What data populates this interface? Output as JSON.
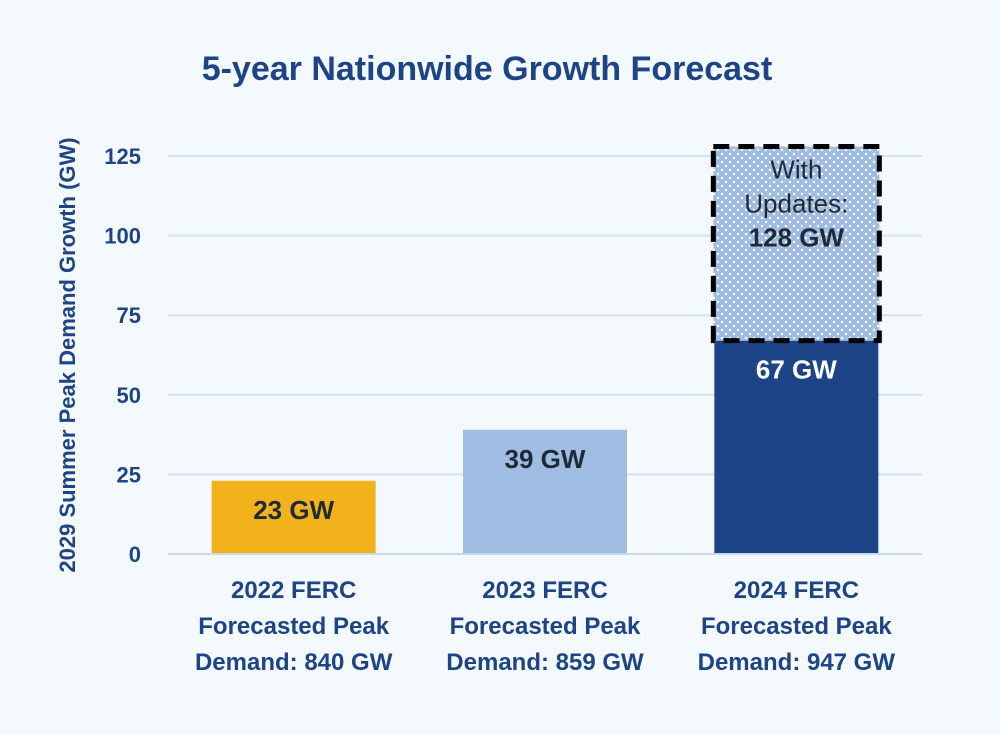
{
  "chart_data": {
    "type": "bar",
    "title": "5-year Nationwide Growth Forecast",
    "xlabel": "",
    "ylabel": "2029 Summer Peak Demand Growth (GW)",
    "ylim": [
      0,
      135
    ],
    "yticks": [
      0,
      25,
      50,
      75,
      100,
      125
    ],
    "grid": true,
    "categories": [
      [
        "2022 FERC",
        "Forecasted Peak",
        "Demand: 840 GW"
      ],
      [
        "2023 FERC",
        "Forecasted Peak",
        "Demand: 859 GW"
      ],
      [
        "2024 FERC",
        "Forecasted Peak",
        "Demand: 947 GW"
      ]
    ],
    "values": [
      23,
      39,
      67
    ],
    "data_labels": [
      "23 GW",
      "39 GW",
      "67 GW"
    ],
    "bar_colors": [
      "#f2b21b",
      "#9fbde3",
      "#1d4486"
    ],
    "label_colors": [
      "#1f2a36",
      "#1f2a36",
      "#ffffff"
    ],
    "annotation": {
      "category_index": 2,
      "from": 67,
      "to": 128,
      "lines": [
        "With",
        "Updates:"
      ],
      "value_label": "128 GW",
      "fill": "#9fbde3",
      "dot_color": "#ffffff",
      "border_color": "#000000"
    }
  }
}
